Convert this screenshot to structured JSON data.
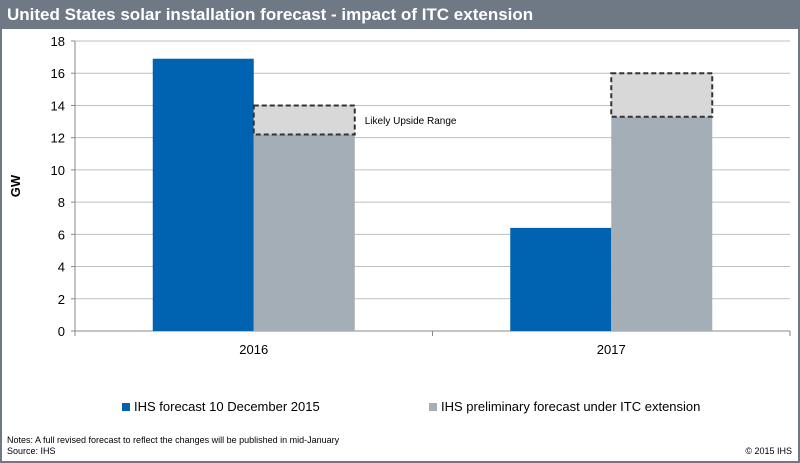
{
  "header": {
    "title": "United States solar installation forecast - impact of ITC extension"
  },
  "chart_data": {
    "type": "bar",
    "title": "United States solar installation forecast - impact of ITC extension",
    "categories": [
      "2016",
      "2017"
    ],
    "ylabel": "GW",
    "ylim": [
      0,
      18
    ],
    "yticks": [
      0,
      2,
      4,
      6,
      8,
      10,
      12,
      14,
      16,
      18
    ],
    "grid": true,
    "legend": "bottom",
    "series": [
      {
        "name": "IHS forecast 10 December 2015",
        "values": [
          16.9,
          6.4
        ],
        "color": "#0063b1"
      },
      {
        "name": "IHS preliminary forecast under ITC extension",
        "values": [
          12.2,
          13.3
        ],
        "color": "#a3aeb6"
      }
    ],
    "upside_range": {
      "label": "Likely Upside Range",
      "ranges": [
        [
          12.2,
          14.0
        ],
        [
          13.3,
          16.0
        ]
      ],
      "color": "#d8d8d8"
    }
  },
  "footer": {
    "notes": "Notes: A full revised forecast to reflect the changes will be published in mid-January",
    "source": "Source: IHS",
    "copyright": "© 2015 IHS"
  }
}
